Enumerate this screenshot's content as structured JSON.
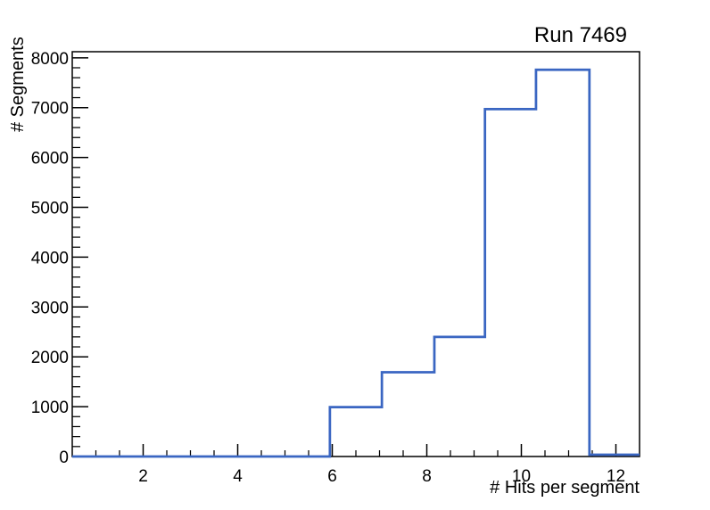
{
  "page": {
    "background_color": "#ffffff",
    "text_color": "#000000"
  },
  "chart_data": {
    "type": "histogram-step",
    "title": "Run 7469",
    "xlabel": "# Hits per segment",
    "ylabel": "# Segments",
    "xlim": [
      0.5,
      12.5
    ],
    "ylim": [
      0,
      8122
    ],
    "x_major_ticks": [
      2,
      4,
      6,
      8,
      10,
      12
    ],
    "x_minor_step": 0.5,
    "y_major_ticks": [
      0,
      1000,
      2000,
      3000,
      4000,
      5000,
      6000,
      7000,
      8000
    ],
    "y_minor_step": 200,
    "grid": false,
    "legend": "none",
    "ticks_direction": "inside",
    "line_color": "#3a66c2",
    "frame_color": "#000000",
    "steps": [
      {
        "x_start": 0.5,
        "x_end": 5.95,
        "y": 0
      },
      {
        "x_start": 5.95,
        "x_end": 7.05,
        "y": 990
      },
      {
        "x_start": 7.05,
        "x_end": 8.16,
        "y": 1690
      },
      {
        "x_start": 8.16,
        "x_end": 9.23,
        "y": 2400
      },
      {
        "x_start": 9.23,
        "x_end": 10.31,
        "y": 6970
      },
      {
        "x_start": 10.31,
        "x_end": 11.44,
        "y": 7760
      },
      {
        "x_start": 11.44,
        "x_end": 12.5,
        "y": 35
      }
    ]
  }
}
